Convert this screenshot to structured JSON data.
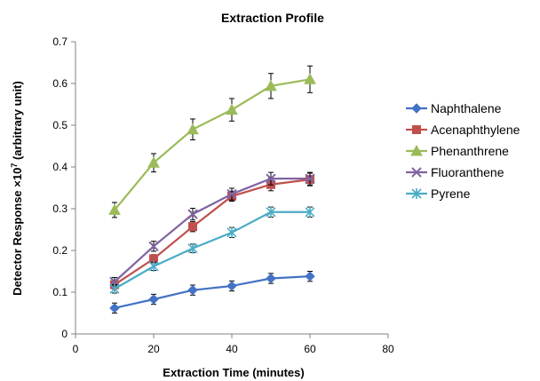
{
  "chart_data": {
    "type": "line",
    "title": "Extraction Profile",
    "xlabel": "Extraction Time (minutes)",
    "ylabel_main": "Detector Response ×10",
    "ylabel_sup": "7",
    "ylabel_tail": " (arbitrary unit)",
    "xlim": [
      0,
      80
    ],
    "ylim": [
      0,
      0.7
    ],
    "xticks": [
      0,
      20,
      40,
      60,
      80
    ],
    "yticks": [
      0,
      0.1,
      0.2,
      0.3,
      0.4,
      0.5,
      0.6,
      0.7
    ],
    "xtick_labels": [
      "0",
      "20",
      "40",
      "60",
      "80"
    ],
    "ytick_labels": [
      "0",
      "0.1",
      "0.2",
      "0.3",
      "0.4",
      "0.5",
      "0.6",
      "0.7"
    ],
    "grid": false,
    "legend_position": "right",
    "x": [
      10,
      20,
      30,
      40,
      50,
      60
    ],
    "series": [
      {
        "name": "Naphthalene",
        "color": "#4472C4",
        "marker": "diamond",
        "values": [
          0.062,
          0.083,
          0.105,
          0.115,
          0.133,
          0.138
        ],
        "errors": [
          0.012,
          0.012,
          0.012,
          0.012,
          0.012,
          0.012
        ]
      },
      {
        "name": "Acenaphthylene",
        "color": "#C0504D",
        "marker": "square",
        "values": [
          0.118,
          0.18,
          0.257,
          0.33,
          0.358,
          0.37
        ],
        "errors": [
          0.01,
          0.01,
          0.012,
          0.012,
          0.015,
          0.015
        ]
      },
      {
        "name": "Phenanthrene",
        "color": "#9BBB59",
        "marker": "triangle",
        "values": [
          0.297,
          0.41,
          0.49,
          0.537,
          0.594,
          0.61
        ],
        "errors": [
          0.018,
          0.022,
          0.025,
          0.027,
          0.03,
          0.032
        ]
      },
      {
        "name": "Fluoranthene",
        "color": "#8064A2",
        "marker": "x",
        "values": [
          0.125,
          0.21,
          0.287,
          0.335,
          0.372,
          0.372
        ],
        "errors": [
          0.01,
          0.012,
          0.014,
          0.014,
          0.015,
          0.015
        ]
      },
      {
        "name": "Pyrene",
        "color": "#4BACC6",
        "marker": "star",
        "values": [
          0.108,
          0.162,
          0.205,
          0.243,
          0.292,
          0.292
        ],
        "errors": [
          0.01,
          0.01,
          0.01,
          0.012,
          0.012,
          0.012
        ]
      }
    ]
  }
}
